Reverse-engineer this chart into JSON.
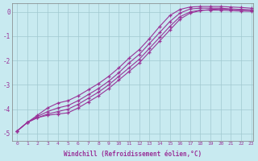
{
  "bg_color": "#c8eaf0",
  "grid_color": "#a0c8d0",
  "line_color": "#993399",
  "xlabel": "Windchill (Refroidissement éolien,°C)",
  "xlim_min": -0.5,
  "xlim_max": 23.2,
  "ylim_min": -5.3,
  "ylim_max": 0.35,
  "yticks": [
    0,
    -1,
    -2,
    -3,
    -4,
    -5
  ],
  "xticks": [
    0,
    1,
    2,
    3,
    4,
    5,
    6,
    7,
    8,
    9,
    10,
    11,
    12,
    13,
    14,
    15,
    16,
    17,
    18,
    19,
    20,
    21,
    22,
    23
  ],
  "curves": [
    [
      -4.9,
      -4.55,
      -4.25,
      -3.95,
      -3.75,
      -3.65,
      -3.45,
      -3.2,
      -2.95,
      -2.65,
      -2.3,
      -1.9,
      -1.55,
      -1.1,
      -0.6,
      -0.15,
      0.1,
      0.2,
      0.22,
      0.22,
      0.22,
      0.2,
      0.18,
      0.15
    ],
    [
      -4.9,
      -4.55,
      -4.3,
      -4.1,
      -3.95,
      -3.85,
      -3.65,
      -3.4,
      -3.15,
      -2.85,
      -2.5,
      -2.1,
      -1.75,
      -1.3,
      -0.85,
      -0.4,
      -0.05,
      0.12,
      0.15,
      0.15,
      0.15,
      0.12,
      0.1,
      0.08
    ],
    [
      -4.9,
      -4.55,
      -4.35,
      -4.2,
      -4.1,
      -4.0,
      -3.8,
      -3.55,
      -3.3,
      -3.0,
      -2.65,
      -2.3,
      -1.95,
      -1.5,
      -1.05,
      -0.6,
      -0.2,
      0.0,
      0.07,
      0.07,
      0.07,
      0.05,
      0.03,
      0.02
    ],
    [
      -4.9,
      -4.55,
      -4.35,
      -4.25,
      -4.2,
      -4.15,
      -3.95,
      -3.7,
      -3.45,
      -3.15,
      -2.8,
      -2.45,
      -2.1,
      -1.65,
      -1.2,
      -0.75,
      -0.3,
      -0.05,
      0.05,
      0.1,
      0.12,
      0.1,
      0.08,
      0.06
    ]
  ]
}
